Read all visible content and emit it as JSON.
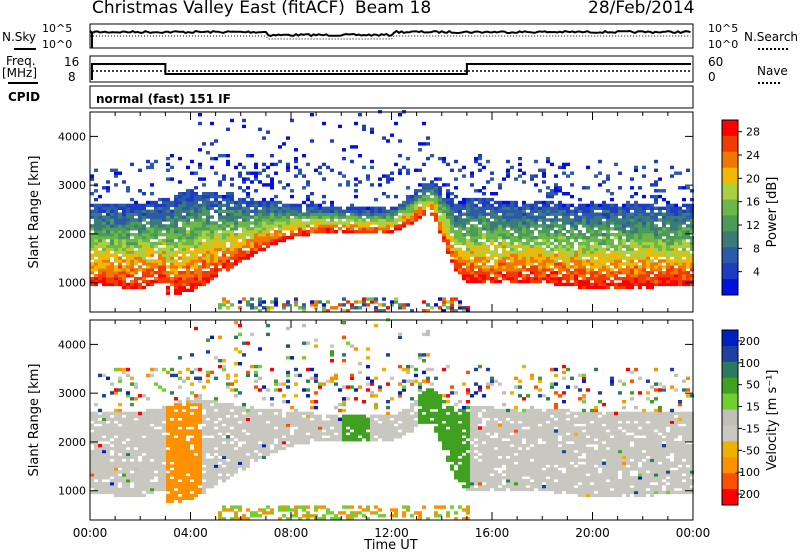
{
  "header": {
    "title": "Christmas Valley East (fitACF)",
    "beam": "Beam 18",
    "date": "28/Feb/2014"
  },
  "status_panels": {
    "nsky_label": "N.Sky",
    "nsearch_label": "N.Search",
    "noise_ticks": [
      "10^5",
      "10^0"
    ],
    "freq_label": "Freq.",
    "freq_unit": "[MHz]",
    "freq_ticks": [
      "16",
      "8"
    ],
    "nave_label": "Nave",
    "nave_ticks": [
      "60",
      "0"
    ],
    "cpid_label": "CPID",
    "cpid_value": "normal (fast) 151 IF"
  },
  "colors": {
    "power_scale": [
      "#0010e0",
      "#1e3cc0",
      "#2a5aa8",
      "#3a7a78",
      "#4a9a5a",
      "#6ab84a",
      "#a8d040",
      "#f0b800",
      "#f07800",
      "#f03c00",
      "#ff0000"
    ],
    "velocity_scale": [
      "#ff0000",
      "#ff5000",
      "#ff9000",
      "#f0b000",
      "#c8c8c0",
      "#c0c0b8",
      "#70d030",
      "#40a020",
      "#2a7a60",
      "#2040a0",
      "#0020c0"
    ]
  },
  "chart_data": [
    {
      "type": "heatmap",
      "name": "power",
      "xlabel": "Time UT",
      "ylabel": "Slant Range [km]",
      "xlim": [
        0,
        24
      ],
      "ylim": [
        400,
        4500
      ],
      "yticks": [
        "1000",
        "2000",
        "3000",
        "4000"
      ],
      "colorbar_label": "Power [dB]",
      "colorbar_ticks": [
        "4",
        "8",
        "12",
        "16",
        "20",
        "24",
        "28"
      ],
      "colorbar_range": [
        0,
        30
      ],
      "dense_echo_lower_edge_km": [
        [
          0.0,
          900
        ],
        [
          2.0,
          850
        ],
        [
          2.9,
          1000
        ],
        [
          3.0,
          700
        ],
        [
          4.0,
          800
        ],
        [
          5.0,
          1100
        ],
        [
          6.0,
          1400
        ],
        [
          7.0,
          1700
        ],
        [
          8.0,
          1900
        ],
        [
          9.0,
          2000
        ],
        [
          10.0,
          2000
        ],
        [
          12.0,
          2000
        ],
        [
          13.5,
          2400
        ],
        [
          14.5,
          1200
        ],
        [
          15.0,
          950
        ],
        [
          18.0,
          950
        ],
        [
          20.0,
          850
        ],
        [
          24.0,
          900
        ]
      ],
      "dense_echo_upper_edge_km": [
        [
          0.0,
          2600
        ],
        [
          2.0,
          2600
        ],
        [
          3.0,
          2700
        ],
        [
          4.0,
          2900
        ],
        [
          5.0,
          2800
        ],
        [
          6.0,
          2700
        ],
        [
          8.0,
          2600
        ],
        [
          10.0,
          2500
        ],
        [
          12.0,
          2500
        ],
        [
          13.5,
          3100
        ],
        [
          14.5,
          2600
        ],
        [
          15.0,
          2700
        ],
        [
          20.0,
          2600
        ],
        [
          24.0,
          2600
        ]
      ]
    },
    {
      "type": "heatmap",
      "name": "velocity",
      "xlabel": "Time UT",
      "ylabel": "Slant Range [km]",
      "xlim": [
        0,
        24
      ],
      "ylim": [
        400,
        4500
      ],
      "yticks": [
        "1000",
        "2000",
        "3000",
        "4000"
      ],
      "xticks": [
        "00:00",
        "04:00",
        "08:00",
        "12:00",
        "16:00",
        "20:00",
        "00:00"
      ],
      "colorbar_label": "Velocity [m s⁻¹]",
      "colorbar_ticks": [
        "200",
        "100",
        "50",
        "15",
        "-15",
        "-50",
        "-100",
        "-200"
      ],
      "colorbar_range": [
        -250,
        250
      ]
    }
  ]
}
